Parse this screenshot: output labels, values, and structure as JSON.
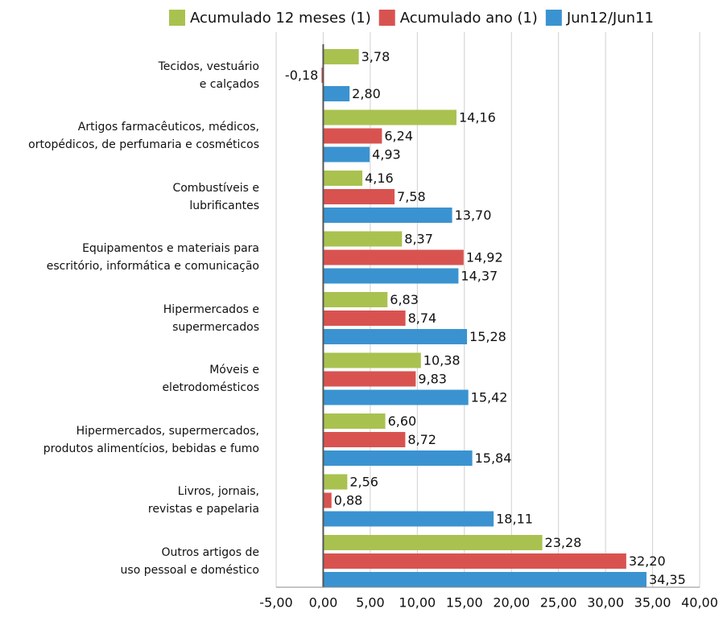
{
  "chart_data": {
    "type": "bar",
    "orientation": "horizontal",
    "categories": [
      "Tecidos, vestuário\ne calçados",
      "Artigos farmacêuticos, médicos,\nortopédicos, de perfumaria e cosméticos",
      "Combustíveis e\nlubrificantes",
      "Equipamentos e materiais para\nescritório, informática e comunicação",
      "Hipermercados e\nsupermercados",
      "Móveis e\neletrodomésticos",
      "Hipermercados, supermercados,\nprodutos alimentícios, bebidas e fumo",
      "Livros, jornais,\nrevistas e papelaria",
      "Outros artigos de\nuso pessoal e doméstico"
    ],
    "series": [
      {
        "name": "Acumulado 12 meses (1)",
        "color": "#a9c24f",
        "values": [
          3.78,
          14.16,
          4.16,
          8.37,
          6.83,
          10.38,
          6.6,
          2.56,
          23.28
        ],
        "value_labels": [
          "3,78",
          "14,16",
          "4,16",
          "8,37",
          "6,83",
          "10,38",
          "6,60",
          "2,56",
          "23,28"
        ]
      },
      {
        "name": "Acumulado ano (1)",
        "color": "#d85350",
        "values": [
          -0.18,
          6.24,
          7.58,
          14.92,
          8.74,
          9.83,
          8.72,
          0.88,
          32.2
        ],
        "value_labels": [
          "-0,18",
          "6,24",
          "7,58",
          "14,92",
          "8,74",
          "9,83",
          "8,72",
          "0,88",
          "32,20"
        ]
      },
      {
        "name": "Jun12/Jun11",
        "color": "#3a93d0",
        "values": [
          2.8,
          4.93,
          13.7,
          14.37,
          15.28,
          15.42,
          15.84,
          18.11,
          34.35
        ],
        "value_labels": [
          "2,80",
          "4,93",
          "13,70",
          "14,37",
          "15,28",
          "15,42",
          "15,84",
          "18,11",
          "34,35"
        ]
      }
    ],
    "xlim": [
      -5,
      40
    ],
    "xticks": [
      {
        "value": -5,
        "label": "-5,00"
      },
      {
        "value": 0,
        "label": "0,00"
      },
      {
        "value": 5,
        "label": "5,00"
      },
      {
        "value": 10,
        "label": "10,00"
      },
      {
        "value": 15,
        "label": "15,00"
      },
      {
        "value": 20,
        "label": "20,00"
      },
      {
        "value": 25,
        "label": "25,00"
      },
      {
        "value": 30,
        "label": "30,00"
      },
      {
        "value": 35,
        "label": "35,00"
      },
      {
        "value": 40,
        "label": "40,00"
      }
    ],
    "grid": true,
    "legend": "top"
  }
}
